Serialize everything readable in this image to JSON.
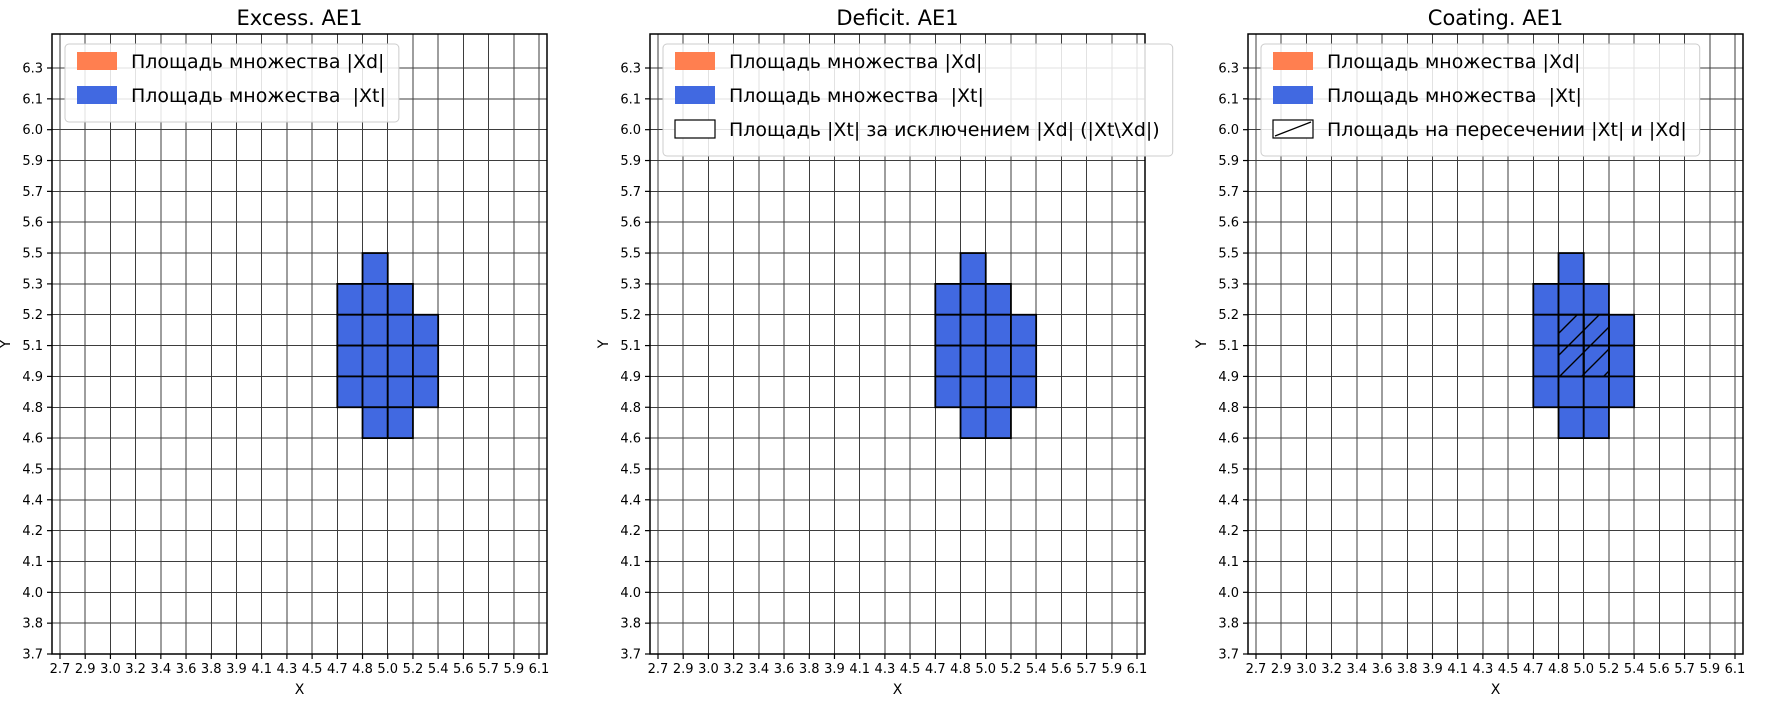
{
  "figure": {
    "background": "#ffffff",
    "colors": {
      "xd_fill": "#FF7F50",
      "xt_fill": "#4169E1",
      "cell_edge": "#000000",
      "grid": "#3d3d3d",
      "frame": "#000000",
      "tick": "#000000",
      "legend_bg": "#ffffff",
      "legend_border": "#cccccc"
    }
  },
  "chart_data": [
    {
      "type": "heatmap",
      "title": "Excess. AE1",
      "xlabel": "X",
      "ylabel": "Y",
      "grid": true,
      "legend_position": "upper left",
      "x_tick_labels": [
        "2.7",
        "2.9",
        "3.0",
        "3.2",
        "3.4",
        "3.6",
        "3.8",
        "3.9",
        "4.1",
        "4.3",
        "4.5",
        "4.7",
        "4.8",
        "5.0",
        "5.2",
        "5.4",
        "5.6",
        "5.7",
        "5.9",
        "6.1"
      ],
      "y_tick_labels": [
        "6.3",
        "6.1",
        "6.0",
        "5.9",
        "5.7",
        "5.6",
        "5.5",
        "5.3",
        "5.2",
        "5.1",
        "4.9",
        "4.8",
        "4.6",
        "4.5",
        "4.4",
        "4.2",
        "4.1",
        "4.0",
        "3.8",
        "3.7"
      ],
      "legend": [
        {
          "label": "Площадь множества |Xd|",
          "patch": {
            "fill": "#FF7F50"
          }
        },
        {
          "label": "Площадь множества  |Xt|",
          "patch": {
            "fill": "#4169E1"
          }
        }
      ],
      "xt_region_x_range": [
        4.7,
        5.4
      ],
      "xt_region_y_range": [
        4.6,
        5.5
      ],
      "xt_cells": [
        {
          "x": [
            4.8,
            5.0
          ],
          "y": [
            5.3,
            5.5
          ]
        },
        {
          "x": [
            4.7,
            4.8
          ],
          "y": [
            5.2,
            5.3
          ]
        },
        {
          "x": [
            4.8,
            5.0
          ],
          "y": [
            5.2,
            5.3
          ]
        },
        {
          "x": [
            5.0,
            5.2
          ],
          "y": [
            5.2,
            5.3
          ]
        },
        {
          "x": [
            4.7,
            4.8
          ],
          "y": [
            5.1,
            5.2
          ]
        },
        {
          "x": [
            4.8,
            5.0
          ],
          "y": [
            5.1,
            5.2
          ]
        },
        {
          "x": [
            5.0,
            5.2
          ],
          "y": [
            5.1,
            5.2
          ]
        },
        {
          "x": [
            5.2,
            5.4
          ],
          "y": [
            5.1,
            5.2
          ]
        },
        {
          "x": [
            4.7,
            4.8
          ],
          "y": [
            4.9,
            5.1
          ]
        },
        {
          "x": [
            4.8,
            5.0
          ],
          "y": [
            4.9,
            5.1
          ]
        },
        {
          "x": [
            5.0,
            5.2
          ],
          "y": [
            4.9,
            5.1
          ]
        },
        {
          "x": [
            5.2,
            5.4
          ],
          "y": [
            4.9,
            5.1
          ]
        },
        {
          "x": [
            4.7,
            4.8
          ],
          "y": [
            4.8,
            4.9
          ]
        },
        {
          "x": [
            4.8,
            5.0
          ],
          "y": [
            4.8,
            4.9
          ]
        },
        {
          "x": [
            5.0,
            5.2
          ],
          "y": [
            4.8,
            4.9
          ]
        },
        {
          "x": [
            5.2,
            5.4
          ],
          "y": [
            4.8,
            4.9
          ]
        },
        {
          "x": [
            4.8,
            5.0
          ],
          "y": [
            4.6,
            4.8
          ]
        },
        {
          "x": [
            5.0,
            5.2
          ],
          "y": [
            4.6,
            4.8
          ]
        }
      ]
    },
    {
      "type": "heatmap",
      "title": "Deficit. AE1",
      "xlabel": "X",
      "ylabel": "Y",
      "grid": true,
      "legend_position": "upper left",
      "x_tick_labels": [
        "2.7",
        "2.9",
        "3.0",
        "3.2",
        "3.4",
        "3.6",
        "3.8",
        "3.9",
        "4.1",
        "4.3",
        "4.5",
        "4.7",
        "4.8",
        "5.0",
        "5.2",
        "5.4",
        "5.6",
        "5.7",
        "5.9",
        "6.1"
      ],
      "y_tick_labels": [
        "6.3",
        "6.1",
        "6.0",
        "5.9",
        "5.7",
        "5.6",
        "5.5",
        "5.3",
        "5.2",
        "5.1",
        "4.9",
        "4.8",
        "4.6",
        "4.5",
        "4.4",
        "4.2",
        "4.1",
        "4.0",
        "3.8",
        "3.7"
      ],
      "legend": [
        {
          "label": "Площадь множества |Xd|",
          "patch": {
            "fill": "#FF7F50"
          }
        },
        {
          "label": "Площадь множества  |Xt|",
          "patch": {
            "fill": "#4169E1"
          }
        },
        {
          "label": "Площадь |Xt| за исключением |Xd| (|Xt\\Xd|)",
          "patch": {
            "fill": "#ffffff",
            "edge": "#000000"
          }
        }
      ],
      "xt_region_x_range": [
        4.7,
        5.4
      ],
      "xt_region_y_range": [
        4.6,
        5.5
      ],
      "xt_cells": [
        {
          "x": [
            4.8,
            5.0
          ],
          "y": [
            5.3,
            5.5
          ]
        },
        {
          "x": [
            4.7,
            4.8
          ],
          "y": [
            5.2,
            5.3
          ]
        },
        {
          "x": [
            4.8,
            5.0
          ],
          "y": [
            5.2,
            5.3
          ]
        },
        {
          "x": [
            5.0,
            5.2
          ],
          "y": [
            5.2,
            5.3
          ]
        },
        {
          "x": [
            4.7,
            4.8
          ],
          "y": [
            5.1,
            5.2
          ]
        },
        {
          "x": [
            4.8,
            5.0
          ],
          "y": [
            5.1,
            5.2
          ]
        },
        {
          "x": [
            5.0,
            5.2
          ],
          "y": [
            5.1,
            5.2
          ]
        },
        {
          "x": [
            5.2,
            5.4
          ],
          "y": [
            5.1,
            5.2
          ]
        },
        {
          "x": [
            4.7,
            4.8
          ],
          "y": [
            4.9,
            5.1
          ]
        },
        {
          "x": [
            4.8,
            5.0
          ],
          "y": [
            4.9,
            5.1
          ]
        },
        {
          "x": [
            5.0,
            5.2
          ],
          "y": [
            4.9,
            5.1
          ]
        },
        {
          "x": [
            5.2,
            5.4
          ],
          "y": [
            4.9,
            5.1
          ]
        },
        {
          "x": [
            4.7,
            4.8
          ],
          "y": [
            4.8,
            4.9
          ]
        },
        {
          "x": [
            4.8,
            5.0
          ],
          "y": [
            4.8,
            4.9
          ]
        },
        {
          "x": [
            5.0,
            5.2
          ],
          "y": [
            4.8,
            4.9
          ]
        },
        {
          "x": [
            5.2,
            5.4
          ],
          "y": [
            4.8,
            4.9
          ]
        },
        {
          "x": [
            4.8,
            5.0
          ],
          "y": [
            4.6,
            4.8
          ]
        },
        {
          "x": [
            5.0,
            5.2
          ],
          "y": [
            4.6,
            4.8
          ]
        }
      ]
    },
    {
      "type": "heatmap",
      "title": "Coating. AE1",
      "xlabel": "X",
      "ylabel": "Y",
      "grid": true,
      "legend_position": "upper left",
      "x_tick_labels": [
        "2.7",
        "2.9",
        "3.0",
        "3.2",
        "3.4",
        "3.6",
        "3.8",
        "3.9",
        "4.1",
        "4.3",
        "4.5",
        "4.7",
        "4.8",
        "5.0",
        "5.2",
        "5.4",
        "5.6",
        "5.7",
        "5.9",
        "6.1"
      ],
      "y_tick_labels": [
        "6.3",
        "6.1",
        "6.0",
        "5.9",
        "5.7",
        "5.6",
        "5.5",
        "5.3",
        "5.2",
        "5.1",
        "4.9",
        "4.8",
        "4.6",
        "4.5",
        "4.4",
        "4.2",
        "4.1",
        "4.0",
        "3.8",
        "3.7"
      ],
      "legend": [
        {
          "label": "Площадь множества |Xd|",
          "patch": {
            "fill": "#FF7F50"
          }
        },
        {
          "label": "Площадь множества  |Xt|",
          "patch": {
            "fill": "#4169E1"
          }
        },
        {
          "label": "Площадь на пересечении |Xt| и |Xd|",
          "patch": {
            "fill": "#ffffff",
            "edge": "#000000",
            "hatch": "/"
          }
        }
      ],
      "xt_region_x_range": [
        4.7,
        5.4
      ],
      "xt_region_y_range": [
        4.6,
        5.5
      ],
      "xt_cells": [
        {
          "x": [
            4.8,
            5.0
          ],
          "y": [
            5.3,
            5.5
          ]
        },
        {
          "x": [
            4.7,
            4.8
          ],
          "y": [
            5.2,
            5.3
          ]
        },
        {
          "x": [
            4.8,
            5.0
          ],
          "y": [
            5.2,
            5.3
          ]
        },
        {
          "x": [
            5.0,
            5.2
          ],
          "y": [
            5.2,
            5.3
          ]
        },
        {
          "x": [
            4.7,
            4.8
          ],
          "y": [
            5.1,
            5.2
          ]
        },
        {
          "x": [
            4.8,
            5.0
          ],
          "y": [
            5.1,
            5.2
          ]
        },
        {
          "x": [
            5.0,
            5.2
          ],
          "y": [
            5.1,
            5.2
          ]
        },
        {
          "x": [
            5.2,
            5.4
          ],
          "y": [
            5.1,
            5.2
          ]
        },
        {
          "x": [
            4.7,
            4.8
          ],
          "y": [
            4.9,
            5.1
          ]
        },
        {
          "x": [
            4.8,
            5.0
          ],
          "y": [
            4.9,
            5.1
          ]
        },
        {
          "x": [
            5.0,
            5.2
          ],
          "y": [
            4.9,
            5.1
          ]
        },
        {
          "x": [
            5.2,
            5.4
          ],
          "y": [
            4.9,
            5.1
          ]
        },
        {
          "x": [
            4.7,
            4.8
          ],
          "y": [
            4.8,
            4.9
          ]
        },
        {
          "x": [
            4.8,
            5.0
          ],
          "y": [
            4.8,
            4.9
          ]
        },
        {
          "x": [
            5.0,
            5.2
          ],
          "y": [
            4.8,
            4.9
          ]
        },
        {
          "x": [
            5.2,
            5.4
          ],
          "y": [
            4.8,
            4.9
          ]
        },
        {
          "x": [
            4.8,
            5.0
          ],
          "y": [
            4.6,
            4.8
          ]
        },
        {
          "x": [
            5.0,
            5.2
          ],
          "y": [
            4.6,
            4.8
          ]
        }
      ],
      "intersection_cells": [
        {
          "x": [
            4.8,
            5.0
          ],
          "y": [
            5.1,
            5.2
          ]
        },
        {
          "x": [
            5.0,
            5.2
          ],
          "y": [
            5.1,
            5.2
          ]
        },
        {
          "x": [
            4.8,
            5.0
          ],
          "y": [
            4.9,
            5.1
          ]
        },
        {
          "x": [
            5.0,
            5.2
          ],
          "y": [
            4.9,
            5.1
          ]
        }
      ]
    }
  ]
}
